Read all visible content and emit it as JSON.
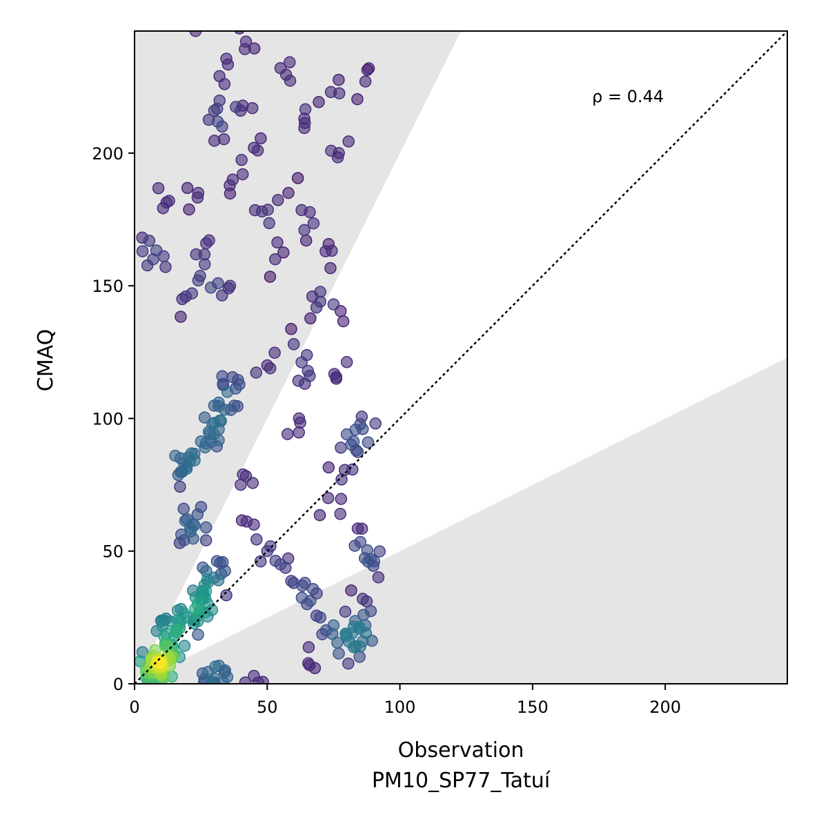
{
  "chart_data": {
    "type": "scatter",
    "xlabel": "Observation",
    "xlabel_line2": "PM10_SP77_Tatuí",
    "ylabel": "CMAQ",
    "xlim": [
      0,
      246
    ],
    "ylim": [
      0,
      246
    ],
    "xticks": [
      0,
      50,
      100,
      150,
      200
    ],
    "yticks": [
      0,
      50,
      100,
      150,
      200
    ],
    "grid": false,
    "legend": "none",
    "annotation": "ρ = 0.44",
    "reference_line": "y = x (dotted)",
    "shaded_region": "outside factor-of-2 band (y > 2x and y < x/2)",
    "colormap": "viridis (point density)",
    "colors": {
      "shade": "#e5e5e5",
      "point_low_density": "#440154",
      "point_high_density": "#fde725",
      "reference_line": "#000000"
    },
    "points_sample": [
      [
        8,
        6
      ],
      [
        10,
        9
      ],
      [
        6,
        4
      ],
      [
        12,
        14
      ],
      [
        15,
        18
      ],
      [
        20,
        25
      ],
      [
        25,
        32
      ],
      [
        30,
        40
      ],
      [
        22,
        60
      ],
      [
        18,
        80
      ],
      [
        28,
        95
      ],
      [
        35,
        110
      ],
      [
        40,
        75
      ],
      [
        45,
        60
      ],
      [
        50,
        50
      ],
      [
        55,
        45
      ],
      [
        60,
        38
      ],
      [
        65,
        30
      ],
      [
        70,
        25
      ],
      [
        75,
        22
      ],
      [
        80,
        18
      ],
      [
        85,
        14
      ],
      [
        88,
        46
      ],
      [
        83,
        52
      ],
      [
        86,
        32
      ],
      [
        62,
        100
      ],
      [
        70,
        144
      ],
      [
        75,
        143
      ],
      [
        60,
        128
      ],
      [
        45,
        202
      ],
      [
        42,
        242
      ],
      [
        23,
        246
      ],
      [
        32,
        229
      ],
      [
        55,
        232
      ],
      [
        74,
        223
      ],
      [
        87,
        227
      ],
      [
        77,
        200
      ],
      [
        64,
        213
      ],
      [
        30,
        216
      ],
      [
        40,
        216
      ],
      [
        33,
        210
      ],
      [
        37,
        190
      ],
      [
        24,
        185
      ],
      [
        13,
        182
      ],
      [
        27,
        166
      ],
      [
        3,
        163
      ],
      [
        7,
        160
      ],
      [
        58,
        185
      ],
      [
        48,
        178
      ],
      [
        53,
        160
      ],
      [
        72,
        163
      ],
      [
        64,
        171
      ],
      [
        18,
        145
      ],
      [
        24,
        152
      ],
      [
        36,
        150
      ],
      [
        50,
        120
      ],
      [
        66,
        116
      ],
      [
        76,
        115
      ],
      [
        86,
        96
      ],
      [
        88,
        91
      ],
      [
        80,
        94
      ],
      [
        78,
        77
      ],
      [
        73,
        70
      ],
      [
        89,
        47
      ],
      [
        87,
        22
      ],
      [
        82,
        19
      ],
      [
        86,
        16
      ],
      [
        66,
        7
      ],
      [
        45,
        3
      ],
      [
        30,
        2
      ]
    ]
  }
}
